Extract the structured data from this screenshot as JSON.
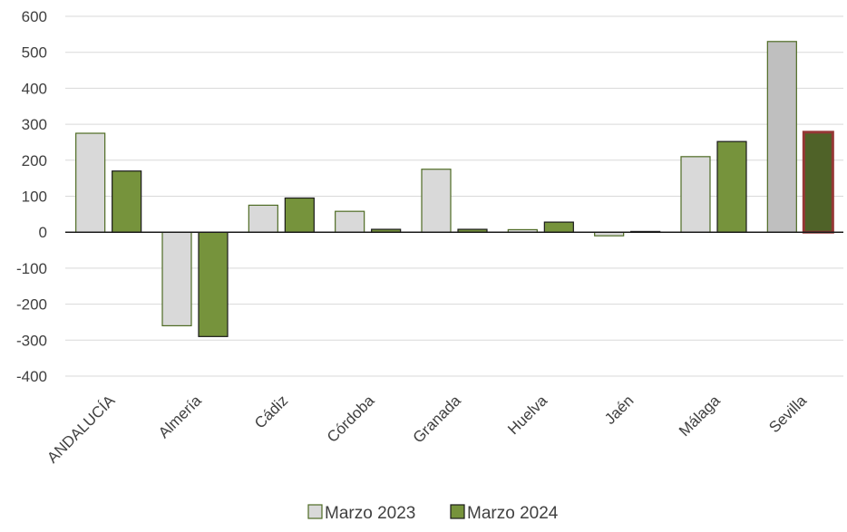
{
  "chart_data": {
    "type": "bar",
    "title": "",
    "xlabel": "",
    "ylabel": "",
    "categories": [
      "ANDALUCÍA",
      "Almería",
      "Cádiz",
      "Córdoba",
      "Granada",
      "Huelva",
      "Jaén",
      "Málaga",
      "Sevilla"
    ],
    "series": [
      {
        "name": "Marzo 2023",
        "values": [
          275,
          -260,
          75,
          58,
          175,
          7,
          -10,
          210,
          530
        ],
        "color": "#d9d9d9",
        "stroke": "#4e6b23",
        "highlight_index": 8,
        "highlight_color": "#bfbfbf"
      },
      {
        "name": "Marzo 2024",
        "values": [
          170,
          -290,
          95,
          8,
          8,
          28,
          2,
          252,
          278
        ],
        "color": "#76933c",
        "stroke": "#1a1a1a",
        "highlight_index": 8,
        "highlight_color": "#4f6228",
        "highlight_stroke": "#953735"
      }
    ],
    "ylim": [
      -400,
      600
    ],
    "yticks": [
      -400,
      -300,
      -200,
      -100,
      0,
      100,
      200,
      300,
      400,
      500,
      600
    ],
    "grid": true,
    "legend": "bottom-center",
    "gridline_color": "#d9d9d9",
    "axis_color": "#1a1a1a"
  }
}
